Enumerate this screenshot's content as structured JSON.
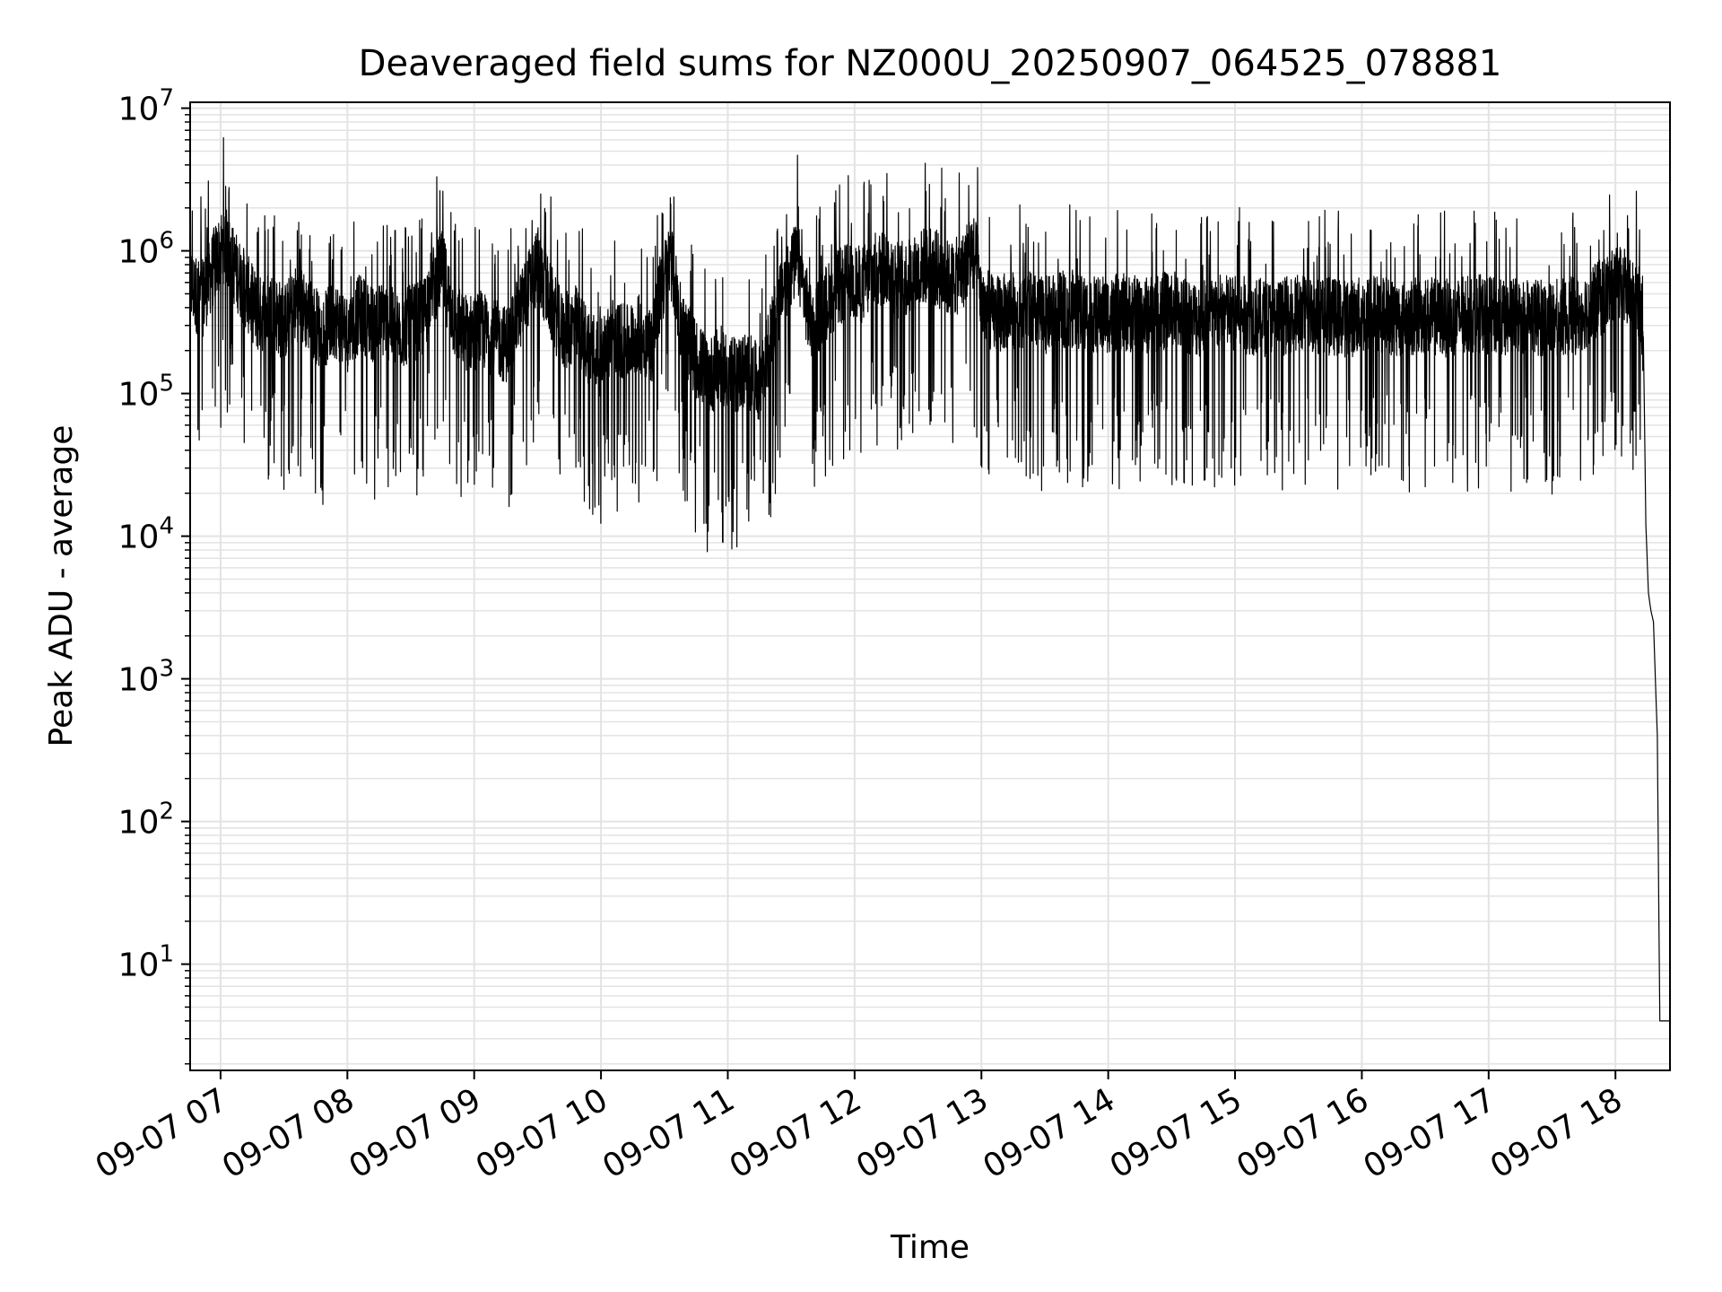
{
  "chart_data": {
    "type": "line",
    "title": "Deaveraged field sums for NZ000U_20250907_064525_078881",
    "xlabel": "Time",
    "ylabel": "Peak ADU - average",
    "yscale": "log",
    "ylim": [
      1.8,
      11000000
    ],
    "xlim_hours": [
      6.76,
      18.43
    ],
    "grid": true,
    "legend": "none",
    "line_color": "#000000",
    "grid_color": "#e3e3e3",
    "x_ticks": [
      {
        "label": "09-07 07",
        "hour": 7
      },
      {
        "label": "09-07 08",
        "hour": 8
      },
      {
        "label": "09-07 09",
        "hour": 9
      },
      {
        "label": "09-07 10",
        "hour": 10
      },
      {
        "label": "09-07 11",
        "hour": 11
      },
      {
        "label": "09-07 12",
        "hour": 12
      },
      {
        "label": "09-07 13",
        "hour": 13
      },
      {
        "label": "09-07 14",
        "hour": 14
      },
      {
        "label": "09-07 15",
        "hour": 15
      },
      {
        "label": "09-07 16",
        "hour": 16
      },
      {
        "label": "09-07 17",
        "hour": 17
      },
      {
        "label": "09-07 18",
        "hour": 18
      }
    ],
    "y_ticks": [
      {
        "base": "10",
        "exp": "1",
        "value": 10
      },
      {
        "base": "10",
        "exp": "2",
        "value": 100
      },
      {
        "base": "10",
        "exp": "3",
        "value": 1000
      },
      {
        "base": "10",
        "exp": "4",
        "value": 10000
      },
      {
        "base": "10",
        "exp": "5",
        "value": 100000
      },
      {
        "base": "10",
        "exp": "6",
        "value": 1000000
      },
      {
        "base": "10",
        "exp": "7",
        "value": 10000000
      }
    ],
    "series": [
      {
        "x_unit": "hour of day, 2025-09-07",
        "x": [
          6.76,
          6.85,
          6.95,
          7.03,
          7.1,
          7.2,
          7.3,
          7.4,
          7.5,
          7.6,
          7.7,
          7.8,
          7.9,
          8.0,
          8.1,
          8.2,
          8.3,
          8.4,
          8.5,
          8.6,
          8.65,
          8.75,
          8.85,
          8.95,
          9.05,
          9.15,
          9.25,
          9.35,
          9.45,
          9.5,
          9.6,
          9.7,
          9.8,
          9.9,
          10.0,
          10.1,
          10.2,
          10.3,
          10.4,
          10.47,
          10.55,
          10.65,
          10.75,
          10.85,
          10.95,
          11.05,
          11.15,
          11.25,
          11.35,
          11.45,
          11.55,
          11.65,
          11.75,
          11.85,
          11.95,
          12.05,
          12.15,
          12.25,
          12.35,
          12.45,
          12.55,
          12.65,
          12.75,
          12.85,
          12.92,
          12.97,
          13.0,
          13.1,
          13.3,
          13.5,
          13.7,
          13.9,
          14.1,
          14.3,
          14.5,
          14.7,
          14.9,
          15.1,
          15.3,
          15.5,
          15.7,
          15.9,
          16.1,
          16.3,
          16.5,
          16.7,
          16.9,
          17.1,
          17.3,
          17.5,
          17.7,
          17.85,
          17.95,
          18.05,
          18.1,
          18.15,
          18.2,
          18.22,
          18.24,
          18.26,
          18.28,
          18.3,
          18.33,
          18.35,
          18.37,
          18.43
        ],
        "y": [
          650000,
          500000,
          900000,
          1300000,
          900000,
          600000,
          400000,
          450000,
          350000,
          500000,
          400000,
          300000,
          380000,
          300000,
          420000,
          350000,
          380000,
          300000,
          350000,
          380000,
          600000,
          850000,
          350000,
          300000,
          320000,
          280000,
          250000,
          400000,
          700000,
          900000,
          500000,
          300000,
          350000,
          250000,
          200000,
          300000,
          250000,
          300000,
          250000,
          600000,
          1000000,
          300000,
          200000,
          150000,
          180000,
          150000,
          170000,
          130000,
          300000,
          700000,
          1000000,
          350000,
          450000,
          600000,
          700000,
          650000,
          800000,
          900000,
          700000,
          750000,
          900000,
          850000,
          700000,
          800000,
          1200000,
          900000,
          500000,
          400000,
          450000,
          400000,
          450000,
          400000,
          420000,
          400000,
          450000,
          380000,
          420000,
          400000,
          380000,
          420000,
          400000,
          380000,
          420000,
          380000,
          400000,
          380000,
          420000,
          380000,
          400000,
          380000,
          400000,
          500000,
          600000,
          650000,
          600000,
          550000,
          480000,
          250000,
          12000,
          4000,
          3000,
          2500,
          400,
          4,
          4,
          4
        ]
      }
    ]
  }
}
